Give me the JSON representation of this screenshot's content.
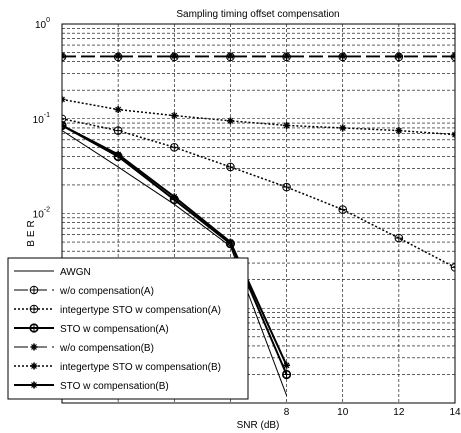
{
  "chart_data": {
    "type": "line",
    "title": "Sampling timing offset compensation",
    "xlabel": "SNR (dB)",
    "ylabel": "BER",
    "xlim": [
      0,
      14
    ],
    "ylim": [
      0.0001,
      1
    ],
    "yscale": "log",
    "grid": true,
    "legend_position": "bottom-left",
    "x_ticks": [
      8,
      10,
      12,
      14
    ],
    "y_ticks": [
      {
        "value": 1,
        "base": "10",
        "exp": "0"
      },
      {
        "value": 0.1,
        "base": "10",
        "exp": "-1"
      },
      {
        "value": 0.01,
        "base": "10",
        "exp": "-2"
      }
    ],
    "x": [
      0,
      2,
      4,
      6,
      8,
      10,
      12,
      14
    ],
    "series": [
      {
        "name": "AWGN",
        "style": "solid",
        "width": 1,
        "marker": "none",
        "values": [
          0.075,
          0.031,
          0.0125,
          0.0045,
          0.00012,
          null,
          null,
          null
        ]
      },
      {
        "name": "w/o compensation(A)",
        "style": "dashed",
        "width": 1,
        "marker": "circle-plus",
        "values": [
          0.45,
          0.45,
          0.45,
          0.45,
          0.45,
          0.45,
          0.45,
          0.45
        ]
      },
      {
        "name": "integertype STO w compensation(A)",
        "style": "dotted",
        "width": 1.5,
        "marker": "circle-plus",
        "values": [
          0.1,
          0.075,
          0.05,
          0.031,
          0.019,
          0.011,
          0.0055,
          0.0027
        ]
      },
      {
        "name": "STO w compensation(A)",
        "style": "solid",
        "width": 2,
        "marker": "circle-plus",
        "values": [
          0.085,
          0.04,
          0.014,
          0.0048,
          0.0002,
          null,
          null,
          null
        ]
      },
      {
        "name": "w/o compensation(B)",
        "style": "dashed",
        "width": 1,
        "marker": "star",
        "values": [
          0.46,
          0.46,
          0.46,
          0.46,
          0.46,
          0.46,
          0.46,
          0.46
        ]
      },
      {
        "name": "integertype STO w compensation(B)",
        "style": "dotted",
        "width": 1.5,
        "marker": "star",
        "values": [
          0.16,
          0.125,
          0.108,
          0.095,
          0.085,
          0.08,
          0.075,
          0.068
        ]
      },
      {
        "name": "STO w compensation(B)",
        "style": "solid",
        "width": 2,
        "marker": "star",
        "values": [
          0.085,
          0.042,
          0.015,
          0.005,
          0.00025,
          null,
          null,
          null
        ]
      }
    ]
  }
}
